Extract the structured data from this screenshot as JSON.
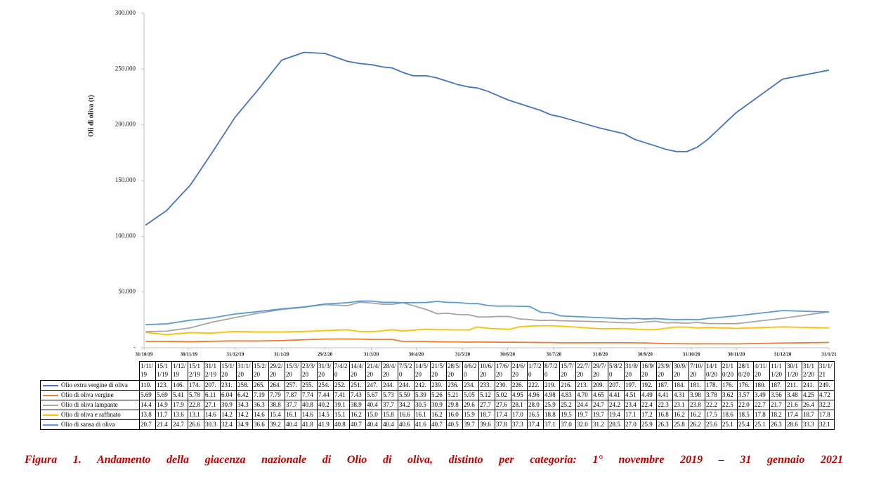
{
  "chart_data": {
    "type": "line",
    "ylabel": "Oli di oliva (t)",
    "caption": "Figura 1. Andamento della giacenza nazionale di Olio di oliva, distinto per categoria: 1° novembre 2019 – 31 gennaio 2021",
    "x": [
      "1/11/19",
      "15/11/19",
      "1/12/19",
      "15/12/19",
      "31/12/19",
      "15/1/20",
      "31/1/20",
      "15/2/20",
      "29/2/20",
      "15/3/20",
      "23/3/20",
      "31/3/20",
      "7/4/20",
      "14/4/20",
      "21/4/20",
      "28/4/20",
      "7/5/20",
      "14/5/20",
      "21/5/20",
      "28/5/20",
      "4/6/20",
      "10/6/20",
      "17/6/20",
      "24/6/20",
      "1/7/20",
      "8/7/20",
      "15/7/20",
      "22/7/20",
      "29/7/20",
      "5/8/20",
      "31/8/20",
      "16/9/20",
      "23/9/20",
      "30/9/20",
      "7/10/20",
      "14/10/20",
      "21/10/20",
      "28/10/20",
      "4/11/20",
      "11/11/20",
      "30/11/20",
      "31/12/20",
      "31/1/21"
    ],
    "xlim": [
      "31/10/19",
      "31/1/21"
    ],
    "xticks": [
      "31/10/19",
      "30/11/19",
      "31/12/19",
      "31/1/20",
      "29/2/20",
      "31/3/20",
      "30/4/20",
      "31/5/20",
      "30/6/20",
      "31/7/20",
      "31/8/20",
      "30/9/20",
      "31/10/20",
      "30/11/20",
      "31/12/20",
      "31/1/21"
    ],
    "ylim": [
      0,
      300000
    ],
    "yticks": [
      {
        "value": 0,
        "label": "-"
      },
      {
        "value": 50000,
        "label": "50.000"
      },
      {
        "value": 100000,
        "label": "100.000"
      },
      {
        "value": 150000,
        "label": "150.000"
      },
      {
        "value": 200000,
        "label": "200.000"
      },
      {
        "value": 250000,
        "label": "250.000"
      },
      {
        "value": 300000,
        "label": "300.000"
      }
    ],
    "series": [
      {
        "name": "Olio extra vergine di oliva",
        "color": "#4472c4",
        "values": [
          110000,
          123000,
          146000,
          174000,
          207000,
          231000,
          258000,
          265000,
          264000,
          257000,
          255000,
          254000,
          252000,
          251000,
          247000,
          244000,
          244000,
          242000,
          239000,
          236000,
          234000,
          233000,
          230000,
          226000,
          222000,
          219000,
          216000,
          213000,
          209000,
          207000,
          197000,
          192000,
          187000,
          184000,
          181000,
          178000,
          176000,
          176000,
          180000,
          187000,
          211000,
          241000,
          249000
        ],
        "value_labels": [
          "110.",
          "123.",
          "146.",
          "174.",
          "207.",
          "231.",
          "258.",
          "265.",
          "264.",
          "257.",
          "255.",
          "254.",
          "252.",
          "251.",
          "247.",
          "244.",
          "244.",
          "242.",
          "239.",
          "236.",
          "234.",
          "233.",
          "230.",
          "226.",
          "222.",
          "219.",
          "216.",
          "213.",
          "209.",
          "207.",
          "197.",
          "192.",
          "187.",
          "184.",
          "181.",
          "178.",
          "176.",
          "176.",
          "180.",
          "187.",
          "211.",
          "241.",
          "249."
        ]
      },
      {
        "name": "Olio di oliva vergine",
        "color": "#ed7d31",
        "values": [
          5690,
          5690,
          5410,
          5780,
          6110,
          6040,
          6420,
          7190,
          7790,
          7870,
          7740,
          7440,
          7410,
          7430,
          5670,
          5730,
          5590,
          5390,
          5260,
          5210,
          5050,
          5120,
          5020,
          4950,
          4960,
          4980,
          4830,
          4700,
          4650,
          4410,
          4510,
          4490,
          4410,
          4310,
          3980,
          3780,
          3620,
          3570,
          3490,
          3560,
          3480,
          4250,
          4720
        ],
        "value_labels": [
          "5.69",
          "5.69",
          "5.41",
          "5.78",
          "6.11",
          "6.04",
          "6.42",
          "7.19",
          "7.79",
          "7.87",
          "7.74",
          "7.44",
          "7.41",
          "7.43",
          "5.67",
          "5.73",
          "5.59",
          "5.39",
          "5.26",
          "5.21",
          "5.05",
          "5.12",
          "5.02",
          "4.95",
          "4.96",
          "4.98",
          "4.83",
          "4.70",
          "4.65",
          "4.41",
          "4.51",
          "4.49",
          "4.41",
          "4.31",
          "3.98",
          "3.78",
          "3.62",
          "3.57",
          "3.49",
          "3.56",
          "3.48",
          "4.25",
          "4.72"
        ]
      },
      {
        "name": "Olio di oliva lampante",
        "color": "#a5a5a5",
        "values": [
          14400,
          14900,
          17900,
          22800,
          27100,
          30900,
          34300,
          36300,
          38800,
          37700,
          40800,
          40200,
          39100,
          38900,
          40400,
          37700,
          34200,
          30500,
          30900,
          29800,
          29600,
          27700,
          27600,
          28100,
          28000,
          25900,
          25200,
          24400,
          24700,
          24200,
          23400,
          22400,
          22300,
          23100,
          23800,
          22200,
          22500,
          22000,
          22700,
          21700,
          21600,
          26400,
          32200
        ],
        "value_labels": [
          "14.4",
          "14.9",
          "17.9",
          "22.8",
          "27.1",
          "30.9",
          "34.3",
          "36.3",
          "38.8",
          "37.7",
          "40.8",
          "40.2",
          "39.1",
          "38.9",
          "40.4",
          "37.7",
          "34.2",
          "30.5",
          "30.9",
          "29.8",
          "29.6",
          "27.7",
          "27.6",
          "28.1",
          "28.0",
          "25.9",
          "25.2",
          "24.4",
          "24.7",
          "24.2",
          "23.4",
          "22.4",
          "22.3",
          "23.1",
          "23.8",
          "22.2",
          "22.5",
          "22.0",
          "22.7",
          "21.7",
          "21.6",
          "26.4",
          "32.2"
        ]
      },
      {
        "name": "Olio di oliva e raffinato",
        "color": "#ffc000",
        "values": [
          13800,
          11700,
          13600,
          13100,
          14600,
          14200,
          14200,
          14600,
          15400,
          16100,
          14600,
          14500,
          15100,
          16200,
          15000,
          15800,
          16600,
          16100,
          16200,
          16000,
          15900,
          18700,
          17400,
          17000,
          16500,
          18800,
          19500,
          19700,
          19700,
          19400,
          17100,
          17200,
          16800,
          16200,
          16200,
          17500,
          18600,
          18500,
          17800,
          18200,
          17400,
          18700,
          17800
        ],
        "value_labels": [
          "13.8",
          "11.7",
          "13.6",
          "13.1",
          "14.6",
          "14.2",
          "14.2",
          "14.6",
          "15.4",
          "16.1",
          "14.6",
          "14.5",
          "15.1",
          "16.2",
          "15.0",
          "15.8",
          "16.6",
          "16.1",
          "16.2",
          "16.0",
          "15.9",
          "18.7",
          "17.4",
          "17.0",
          "16.5",
          "18.8",
          "19.5",
          "19.7",
          "19.7",
          "19.4",
          "17.1",
          "17.2",
          "16.8",
          "16.2",
          "16.2",
          "17.5",
          "18.6",
          "18.5",
          "17.8",
          "18.2",
          "17.4",
          "18.7",
          "17.8"
        ]
      },
      {
        "name": "Olio di sansa di oliva",
        "color": "#5b9bd5",
        "values": [
          20700,
          21400,
          24700,
          26600,
          30300,
          32400,
          34900,
          36600,
          39200,
          40400,
          41800,
          41900,
          40800,
          40700,
          40400,
          40400,
          40600,
          41600,
          40700,
          40500,
          39700,
          39600,
          37800,
          37300,
          37400,
          37100,
          37000,
          32000,
          31200,
          28500,
          27000,
          25900,
          26300,
          25800,
          26200,
          25600,
          25100,
          25400,
          25100,
          26300,
          28600,
          33300,
          32100
        ],
        "value_labels": [
          "20.7",
          "21.4",
          "24.7",
          "26.6",
          "30.3",
          "32.4",
          "34.9",
          "36.6",
          "39.2",
          "40.4",
          "41.8",
          "41.9",
          "40.8",
          "40.7",
          "40.4",
          "40.4",
          "40.6",
          "41.6",
          "40.7",
          "40.5",
          "39.7",
          "39.6",
          "37.8",
          "37.3",
          "37.4",
          "37.1",
          "37.0",
          "32.0",
          "31.2",
          "28.5",
          "27.0",
          "25.9",
          "26.3",
          "25.8",
          "26.2",
          "25.6",
          "25.1",
          "25.4",
          "25.1",
          "26.3",
          "28.6",
          "33.3",
          "32.1"
        ]
      }
    ]
  }
}
